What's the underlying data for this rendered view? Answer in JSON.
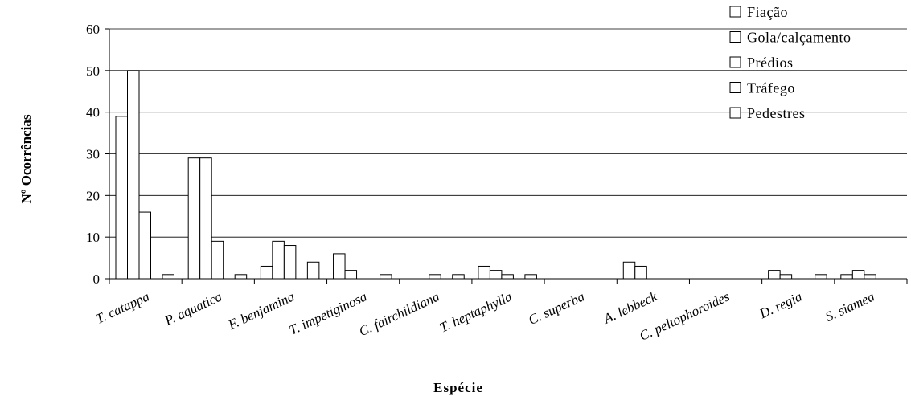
{
  "chart_data": {
    "type": "bar",
    "title": "",
    "xlabel": "Espécie",
    "ylabel": "Nº Ocorrências",
    "ylim": [
      0,
      60
    ],
    "yticks": [
      0,
      10,
      20,
      30,
      40,
      50,
      60
    ],
    "grid": true,
    "legend_position": "top-right",
    "bar_color": "#ffffff",
    "bar_stroke": "#000000",
    "categories": [
      "T. catappa",
      "P. aquatica",
      "F. benjamina",
      "T. impetiginosa",
      "C. fairchildiana",
      "T. heptaphylla",
      "C. superba",
      "A. lebbeck",
      "C. peltophoroides",
      "D. regia",
      "S. siamea"
    ],
    "series": [
      {
        "name": "Fiação",
        "values": [
          39,
          29,
          3,
          6,
          0,
          3,
          0,
          4,
          0,
          2,
          1
        ]
      },
      {
        "name": "Gola/calçamento",
        "values": [
          50,
          29,
          9,
          2,
          0,
          2,
          0,
          3,
          0,
          1,
          2
        ]
      },
      {
        "name": "Prédios",
        "values": [
          16,
          9,
          8,
          0,
          1,
          1,
          0,
          0,
          0,
          0,
          1
        ]
      },
      {
        "name": "Tráfego",
        "values": [
          0,
          0,
          0,
          0,
          0,
          0,
          0,
          0,
          0,
          0,
          0
        ]
      },
      {
        "name": "Pedestres",
        "values": [
          1,
          1,
          4,
          1,
          1,
          1,
          0,
          0,
          0,
          1,
          0
        ]
      }
    ]
  }
}
